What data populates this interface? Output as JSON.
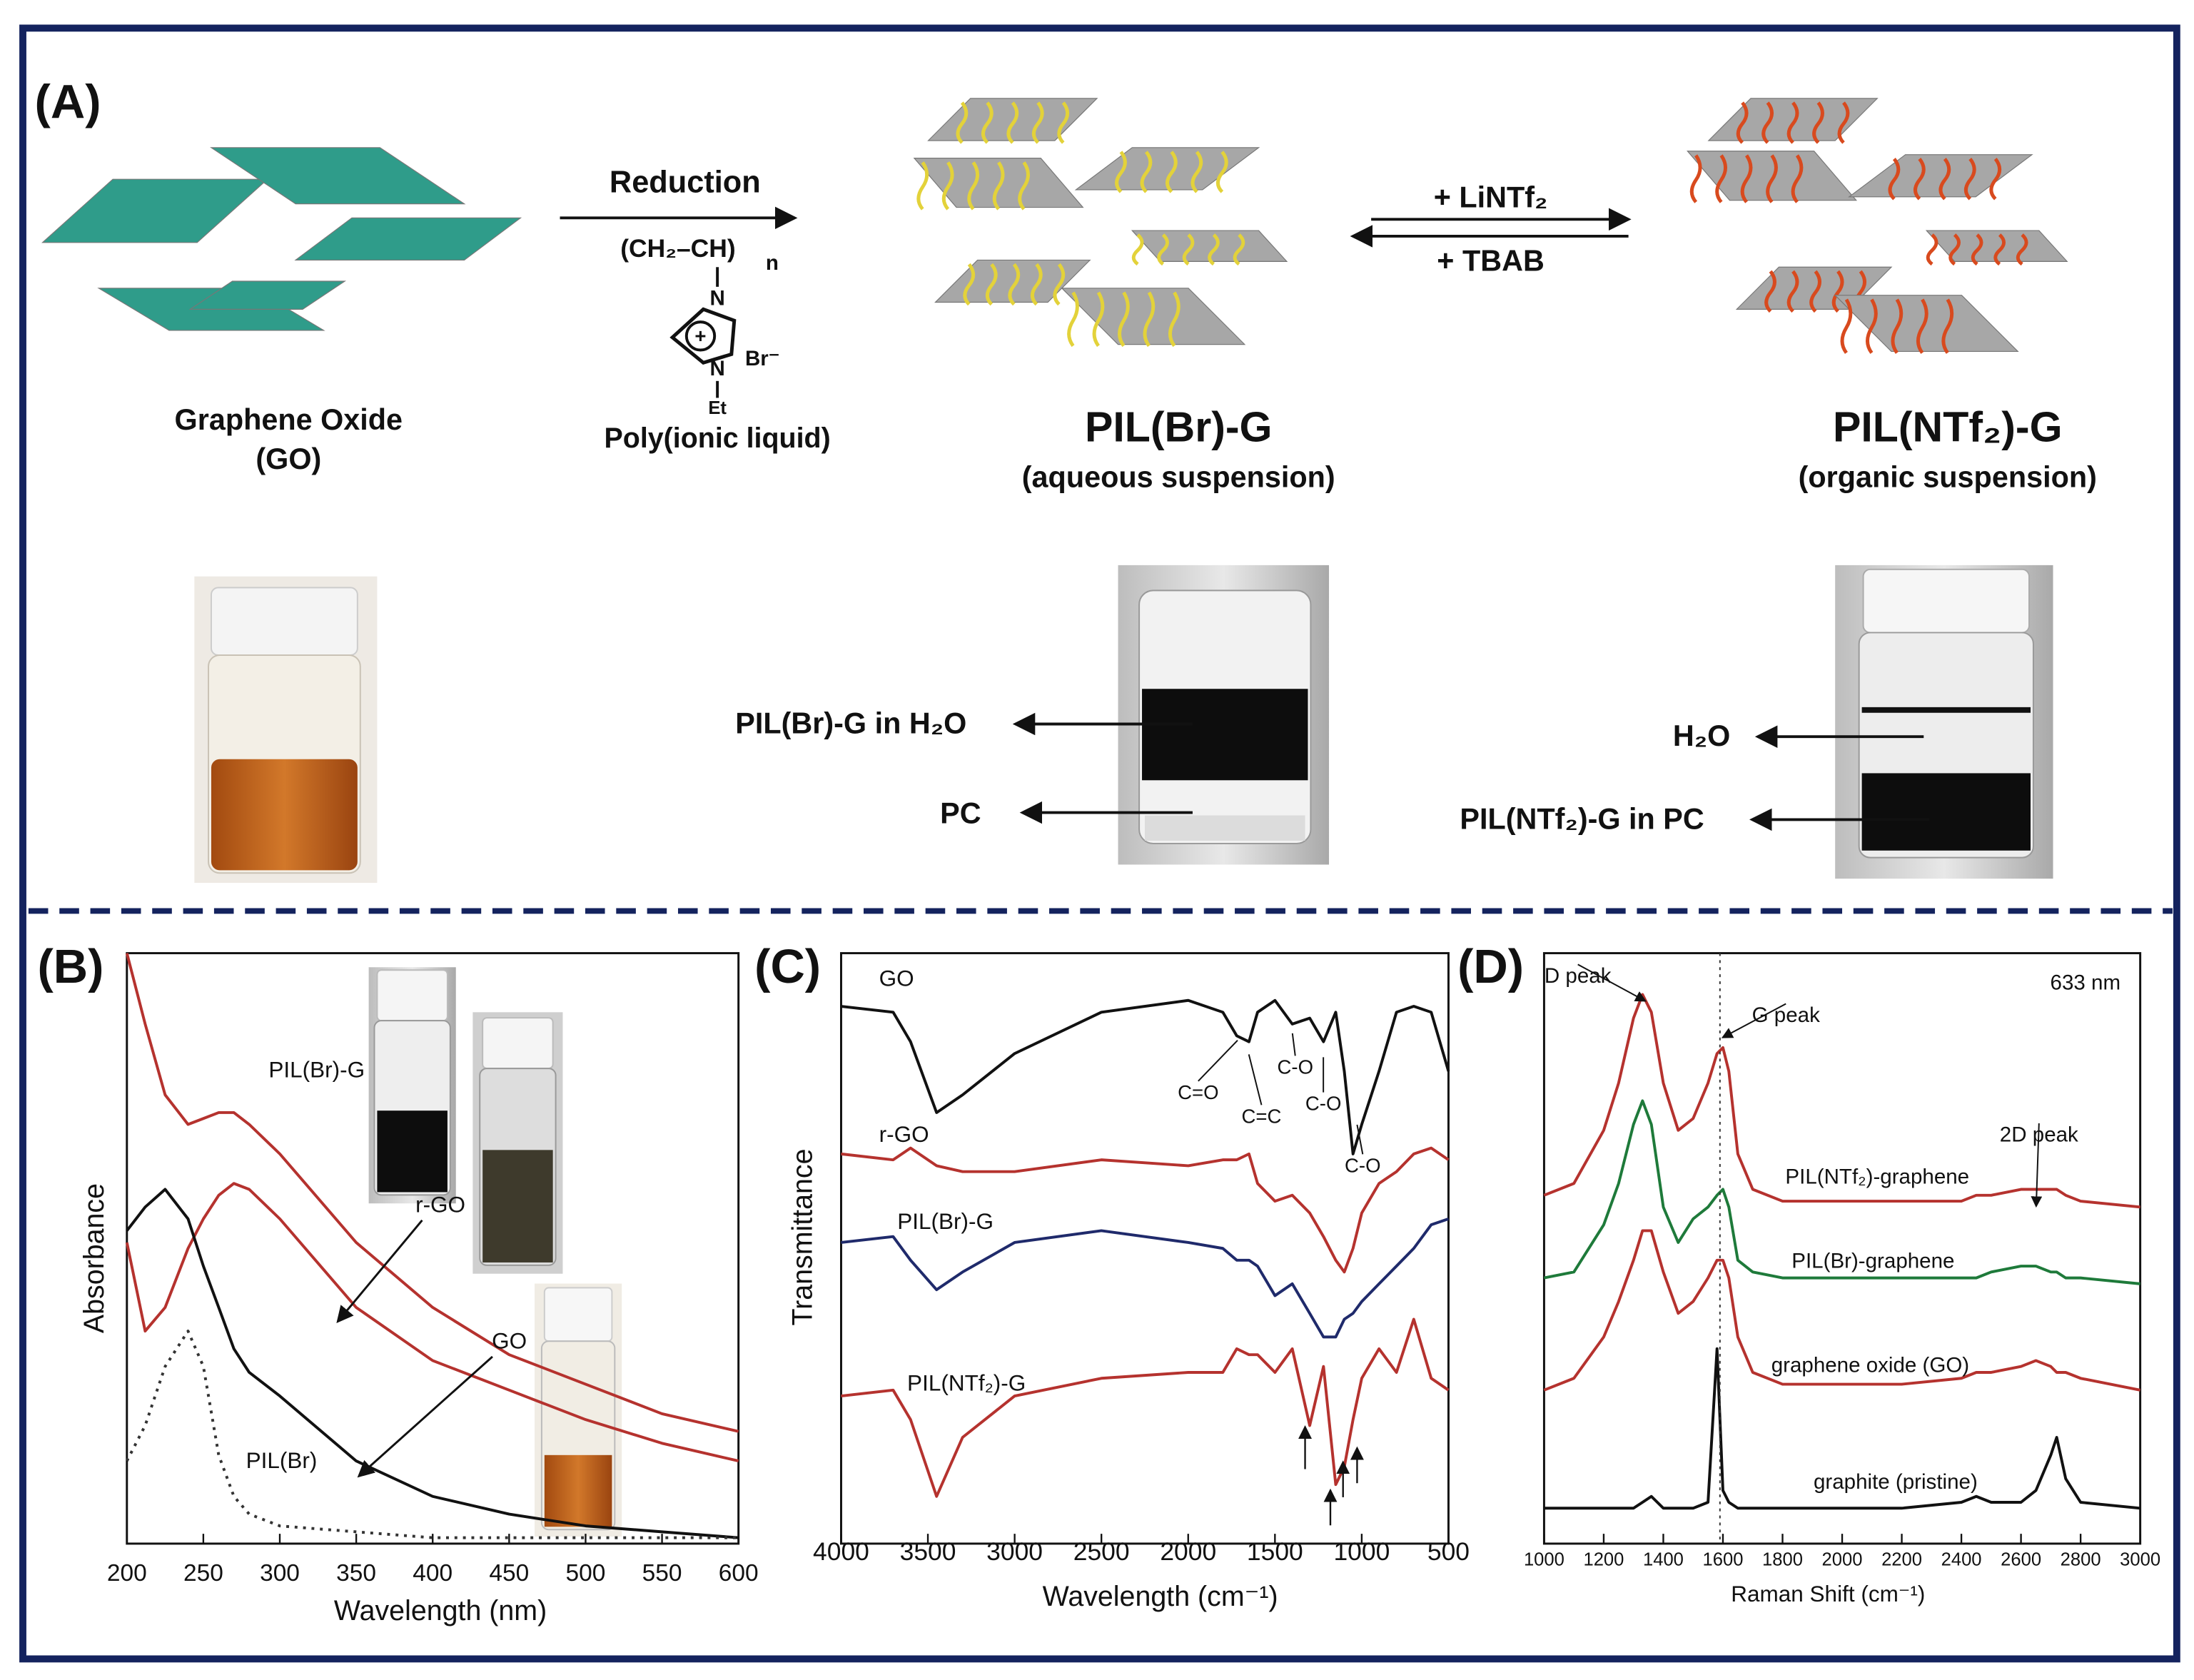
{
  "panel_a": {
    "label": "(A)",
    "go_label": "Graphene Oxide",
    "go_sub": "(GO)",
    "reduction": "Reduction",
    "chem": [
      "(CH₂–CH)",
      "n",
      "N",
      "Br⁻",
      "N",
      "Et"
    ],
    "polymer_label": "Poly(ionic liquid)",
    "pil_br_title": "PIL(Br)-G",
    "pil_br_sub": "(aqueous suspension)",
    "forward_reagent": "+ LiNTf₂",
    "reverse_reagent": "+ TBAB",
    "pil_ntf2_title": "PIL(NTf₂)-G",
    "pil_ntf2_sub": "(organic suspension)",
    "vial_labels": [
      "PIL(Br)-G in H₂O",
      "PC",
      "H₂O",
      "PIL(NTf₂)-G in PC"
    ]
  },
  "chart_data": [
    {
      "type": "line",
      "panel_label": "(B)",
      "x_label": "Wavelength (nm)",
      "y_label": "Absorbance",
      "x": [
        200,
        212,
        225,
        240,
        250,
        260,
        270,
        280,
        300,
        350,
        400,
        450,
        500,
        550,
        600
      ],
      "xlim": [
        200,
        600
      ],
      "xticks": [
        200,
        250,
        300,
        350,
        400,
        450,
        500,
        550,
        600
      ],
      "ylim": [
        0,
        100
      ],
      "series": [
        {
          "name": "PIL(Br)-G",
          "color": "#b5322e",
          "style": "solid",
          "values": [
            100,
            88,
            76,
            71,
            72,
            73,
            73,
            71,
            66,
            51,
            40,
            32,
            27,
            22,
            19
          ]
        },
        {
          "name": "r-GO",
          "color": "#b5322e",
          "style": "solid",
          "values": [
            51,
            36,
            40,
            50,
            55,
            59,
            61,
            60,
            55,
            40,
            31,
            26,
            21,
            17,
            14
          ]
        },
        {
          "name": "GO",
          "color": "#111111",
          "style": "solid",
          "values": [
            53,
            57,
            60,
            55,
            47,
            40,
            33,
            29,
            25,
            14,
            8,
            5,
            3,
            2,
            1
          ]
        },
        {
          "name": "PIL(Br)",
          "color": "#333333",
          "style": "dotted",
          "values": [
            14,
            20,
            30,
            36,
            30,
            15,
            8,
            5,
            3,
            2,
            1,
            1,
            1,
            1,
            1
          ]
        }
      ]
    },
    {
      "type": "line",
      "panel_label": "(C)",
      "x_label": "Wavelength (cm⁻¹)",
      "y_label": "Transmittance",
      "x": [
        4000,
        3700,
        3600,
        3450,
        3300,
        3000,
        2500,
        2000,
        1800,
        1720,
        1650,
        1600,
        1500,
        1400,
        1300,
        1220,
        1150,
        1100,
        1050,
        1000,
        900,
        800,
        700,
        600,
        500
      ],
      "xlim": [
        4000,
        500
      ],
      "xticks": [
        4000,
        3500,
        3000,
        2500,
        2000,
        1500,
        1000,
        500
      ],
      "ylim": [
        0,
        100
      ],
      "annotations": [
        "C=O",
        "C=C",
        "C-O",
        "C-O",
        "C-O"
      ],
      "series": [
        {
          "name": "GO",
          "color": "#111111",
          "style": "solid",
          "values": [
            91,
            90,
            85,
            73,
            76,
            83,
            90,
            92,
            90,
            86,
            85,
            90,
            92,
            88,
            89,
            85,
            90,
            80,
            66,
            71,
            80,
            90,
            91,
            90,
            80
          ]
        },
        {
          "name": "r-GO",
          "color": "#b5322e",
          "style": "solid",
          "values": [
            66,
            65,
            67,
            64,
            63,
            63,
            65,
            64,
            65,
            65,
            66,
            61,
            58,
            59,
            56,
            52,
            48,
            46,
            50,
            56,
            61,
            63,
            66,
            67,
            65
          ]
        },
        {
          "name": "PIL(Br)-G",
          "color": "#1f2a6b",
          "style": "solid",
          "values": [
            51,
            52,
            48,
            43,
            46,
            51,
            53,
            51,
            50,
            48,
            48,
            47,
            42,
            44,
            39,
            35,
            35,
            38,
            39,
            41,
            44,
            47,
            50,
            54,
            55
          ]
        },
        {
          "name": "PIL(NTf₂)-G",
          "color": "#b5322e",
          "style": "solid",
          "values": [
            25,
            26,
            21,
            8,
            18,
            25,
            28,
            29,
            29,
            33,
            32,
            32,
            29,
            33,
            20,
            30,
            10,
            13,
            21,
            28,
            33,
            29,
            38,
            28,
            26
          ]
        }
      ]
    },
    {
      "type": "line",
      "panel_label": "(D)",
      "x_label": "Raman Shift (cm⁻¹)",
      "x": [
        1000,
        1100,
        1200,
        1250,
        1300,
        1330,
        1360,
        1400,
        1450,
        1500,
        1550,
        1580,
        1600,
        1620,
        1650,
        1700,
        1800,
        2000,
        2200,
        2400,
        2450,
        2500,
        2600,
        2650,
        2700,
        2720,
        2750,
        2800,
        3000
      ],
      "xlim": [
        1000,
        3000
      ],
      "xticks": [
        1000,
        1200,
        1400,
        1600,
        1800,
        2000,
        2200,
        2400,
        2600,
        2800,
        3000
      ],
      "ylim": [
        0,
        100
      ],
      "annotations": [
        "633 nm",
        "D peak",
        "G peak",
        "2D peak"
      ],
      "series": [
        {
          "name": "PIL(NTf₂)-graphene",
          "color": "#b5322e",
          "style": "solid",
          "values": [
            59,
            61,
            70,
            78,
            89,
            93,
            90,
            78,
            70,
            72,
            78,
            83,
            84,
            80,
            66,
            60,
            58,
            58,
            58,
            58,
            59,
            59,
            60,
            60,
            60,
            60,
            59,
            58,
            57
          ]
        },
        {
          "name": "PIL(Br)-graphene",
          "color": "#1e7a3a",
          "style": "solid",
          "values": [
            45,
            46,
            54,
            61,
            71,
            75,
            71,
            57,
            51,
            55,
            57,
            59,
            60,
            57,
            48,
            46,
            45,
            45,
            45,
            45,
            45,
            46,
            47,
            47,
            46,
            46,
            45,
            45,
            44
          ]
        },
        {
          "name": "graphene oxide (GO)",
          "color": "#b5322e",
          "style": "solid",
          "values": [
            26,
            28,
            35,
            41,
            48,
            53,
            53,
            46,
            39,
            41,
            45,
            48,
            48,
            45,
            35,
            29,
            27,
            27,
            27,
            28,
            29,
            29,
            30,
            31,
            30,
            29,
            29,
            28,
            26
          ]
        },
        {
          "name": "graphite (pristine)",
          "color": "#111111",
          "style": "solid",
          "values": [
            6,
            6,
            6,
            6,
            6,
            7,
            8,
            6,
            6,
            6,
            7,
            33,
            9,
            7,
            6,
            6,
            6,
            6,
            6,
            7,
            8,
            7,
            7,
            9,
            15,
            18,
            11,
            7,
            6
          ]
        }
      ]
    }
  ]
}
